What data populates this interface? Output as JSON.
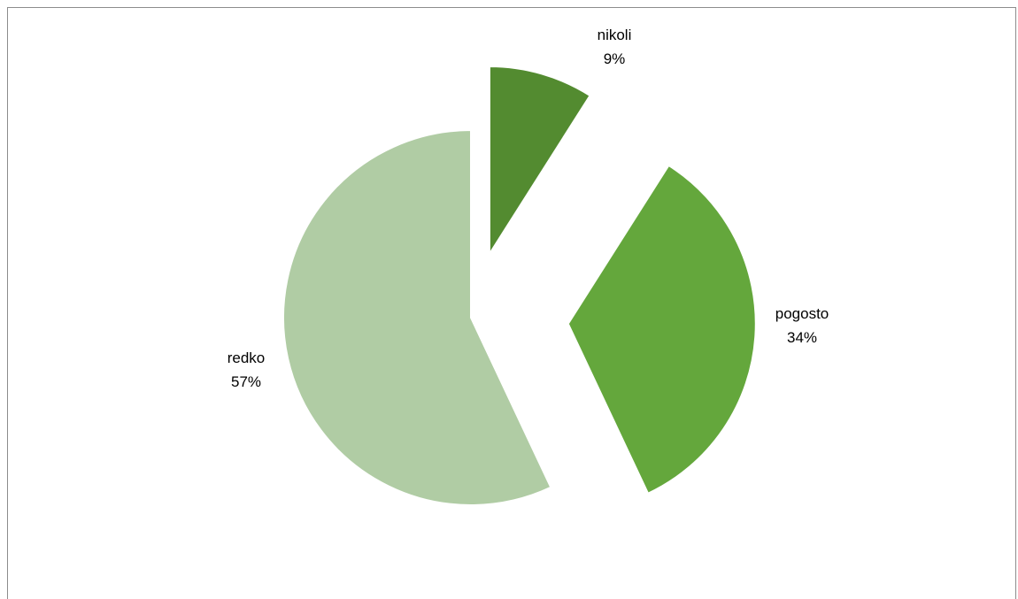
{
  "chart_data": {
    "type": "pie",
    "slices": [
      {
        "category": "nikoli",
        "value": 9,
        "percent_label": "9%",
        "color": "#538b30",
        "exploded": true
      },
      {
        "category": "pogosto",
        "value": 34,
        "percent_label": "34%",
        "color": "#64a73c",
        "exploded": true
      },
      {
        "category": "redko",
        "value": 57,
        "percent_label": "57%",
        "color": "#b0cca4",
        "exploded": false
      }
    ],
    "start_angle": "12 o'clock, clockwise",
    "legend": "none",
    "labels": "category and percent outside each slice"
  }
}
